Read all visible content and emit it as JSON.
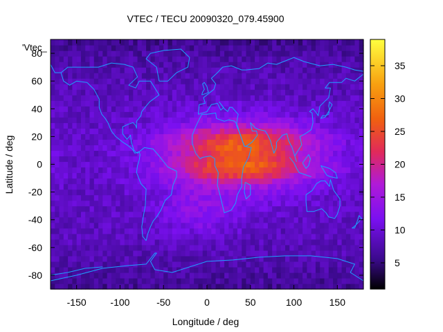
{
  "chart_data": {
    "type": "heatmap",
    "title": "VTEC / TECU 20090320_079.45900",
    "xlabel": "Longitude / deg",
    "ylabel": "Latitude / deg",
    "series_label": "'Vtec_",
    "xlim": [
      -180,
      180
    ],
    "ylim": [
      -90,
      90
    ],
    "x_ticks": [
      -150,
      -100,
      -50,
      0,
      50,
      100,
      150
    ],
    "y_ticks": [
      -80,
      -60,
      -40,
      -20,
      0,
      20,
      40,
      60,
      80
    ],
    "colorbar": {
      "range": [
        1,
        39
      ],
      "ticks": [
        5,
        10,
        15,
        20,
        25,
        30,
        35
      ],
      "palette": [
        "#000000",
        "#3b0a8c",
        "#7a10f0",
        "#b01ad8",
        "#e02a5a",
        "#f06010",
        "#f8a010",
        "#ffff40"
      ],
      "palette_stops": [
        0,
        0.12,
        0.28,
        0.42,
        0.55,
        0.68,
        0.82,
        1
      ]
    },
    "field": {
      "background_vtec": 9,
      "equatorial_peak_vtec": 34,
      "peak_longitude": 40,
      "north_crest_latitude": 15,
      "south_crest_latitude": -2
    },
    "coastline_color": "#1ea0ff"
  }
}
